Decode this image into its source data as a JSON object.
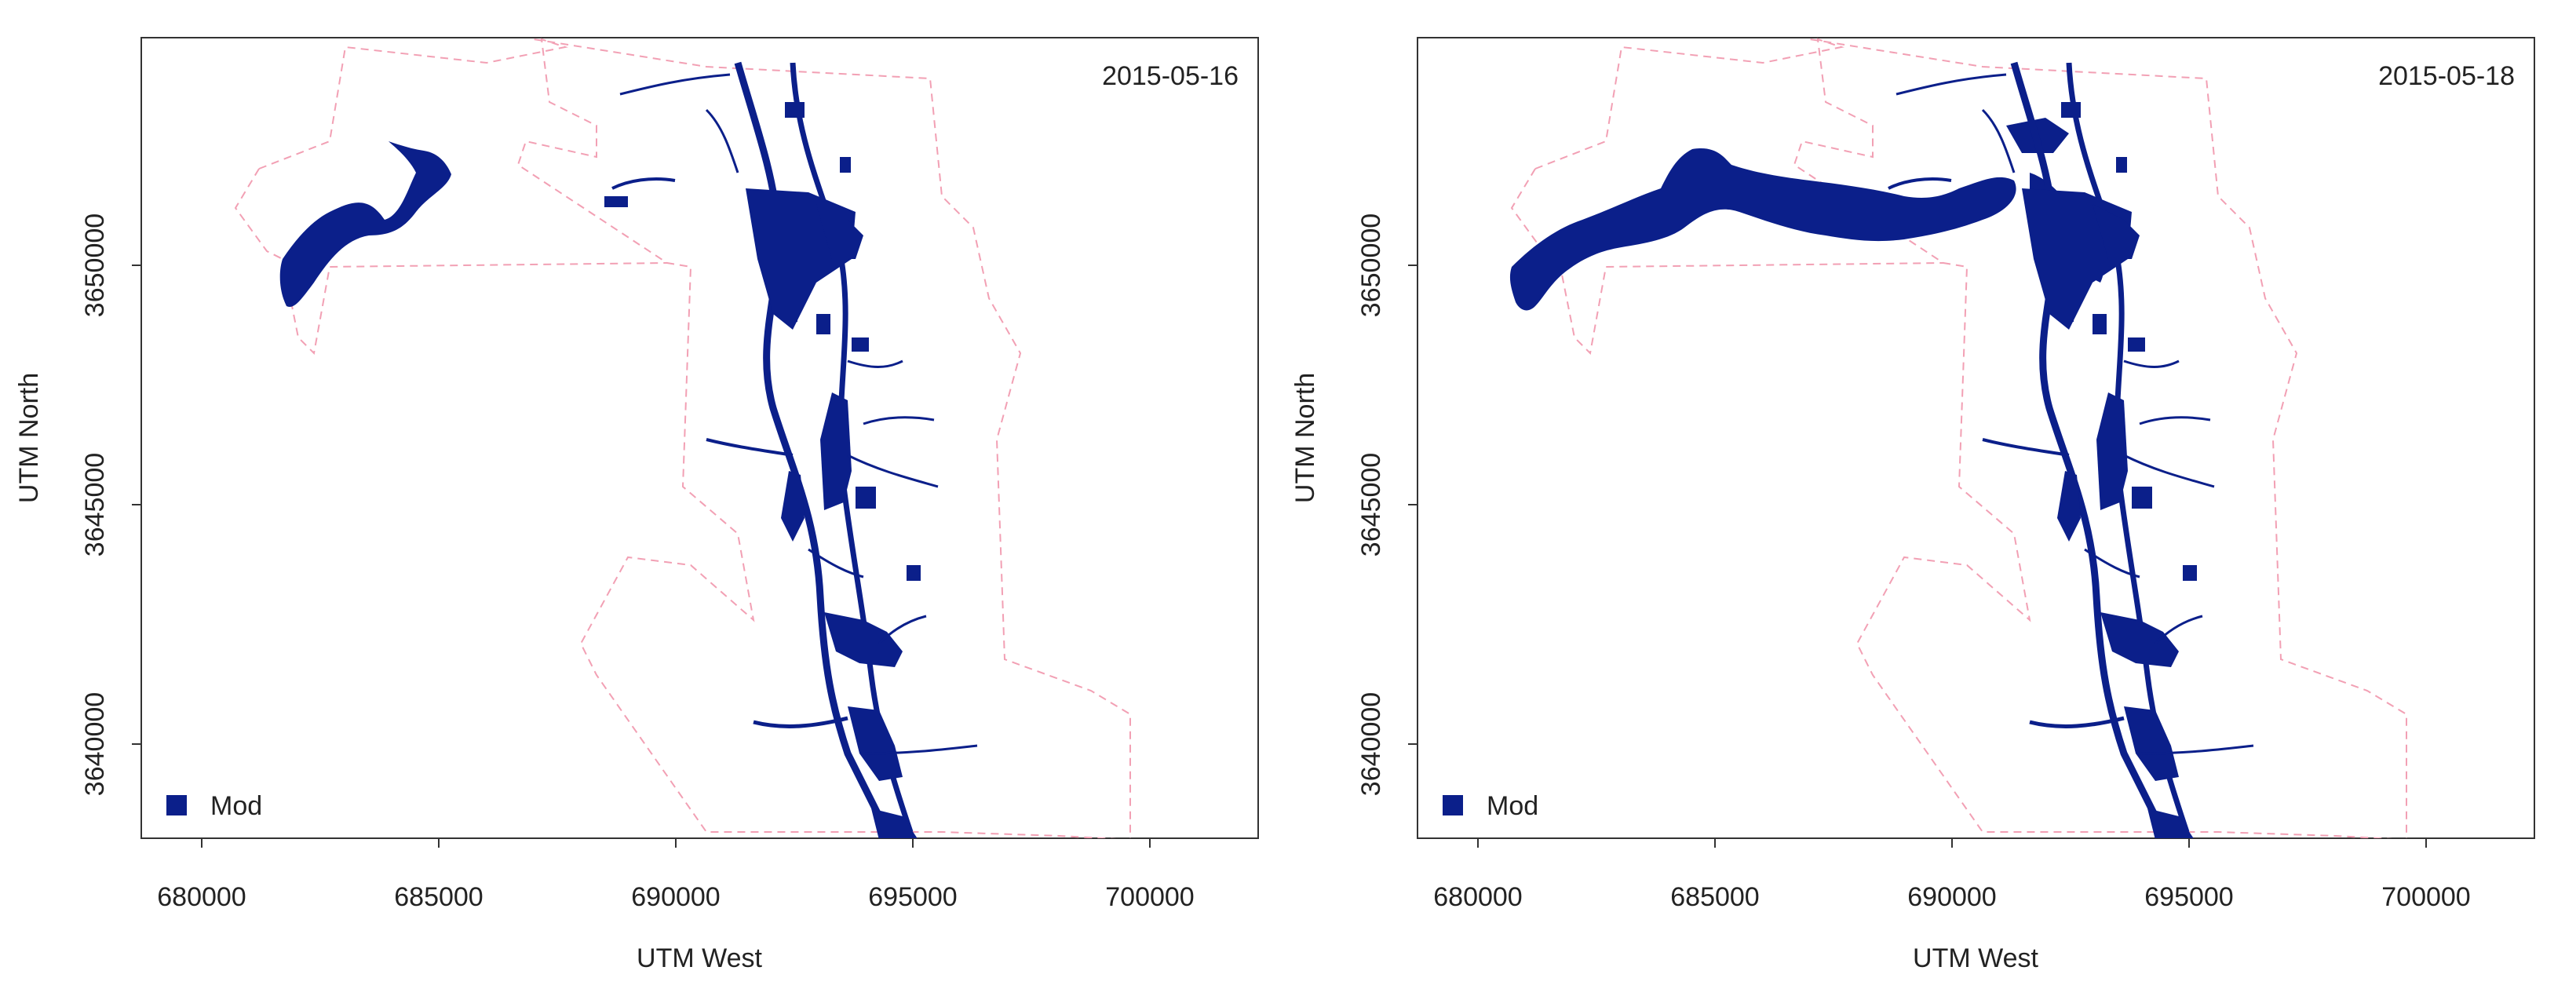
{
  "colors": {
    "water": "#0b1f8a",
    "boundary": "#f2a0b4",
    "axis": "#333333",
    "background": "#ffffff"
  },
  "panels": [
    {
      "id": "left",
      "date_label": "2015-05-16",
      "xlabel": "UTM West",
      "ylabel": "UTM North",
      "x_ticks": [
        "680000",
        "685000",
        "690000",
        "695000",
        "700000"
      ],
      "y_ticks": [
        "3640000",
        "3645000",
        "3650000"
      ],
      "legend_label": "Mod",
      "legend_icon": "square-icon"
    },
    {
      "id": "right",
      "date_label": "2015-05-18",
      "xlabel": "UTM West",
      "ylabel": "UTM North",
      "x_ticks": [
        "680000",
        "685000",
        "690000",
        "695000",
        "700000"
      ],
      "y_ticks": [
        "3640000",
        "3645000",
        "3650000"
      ],
      "legend_label": "Mod",
      "legend_icon": "square-icon"
    }
  ]
}
